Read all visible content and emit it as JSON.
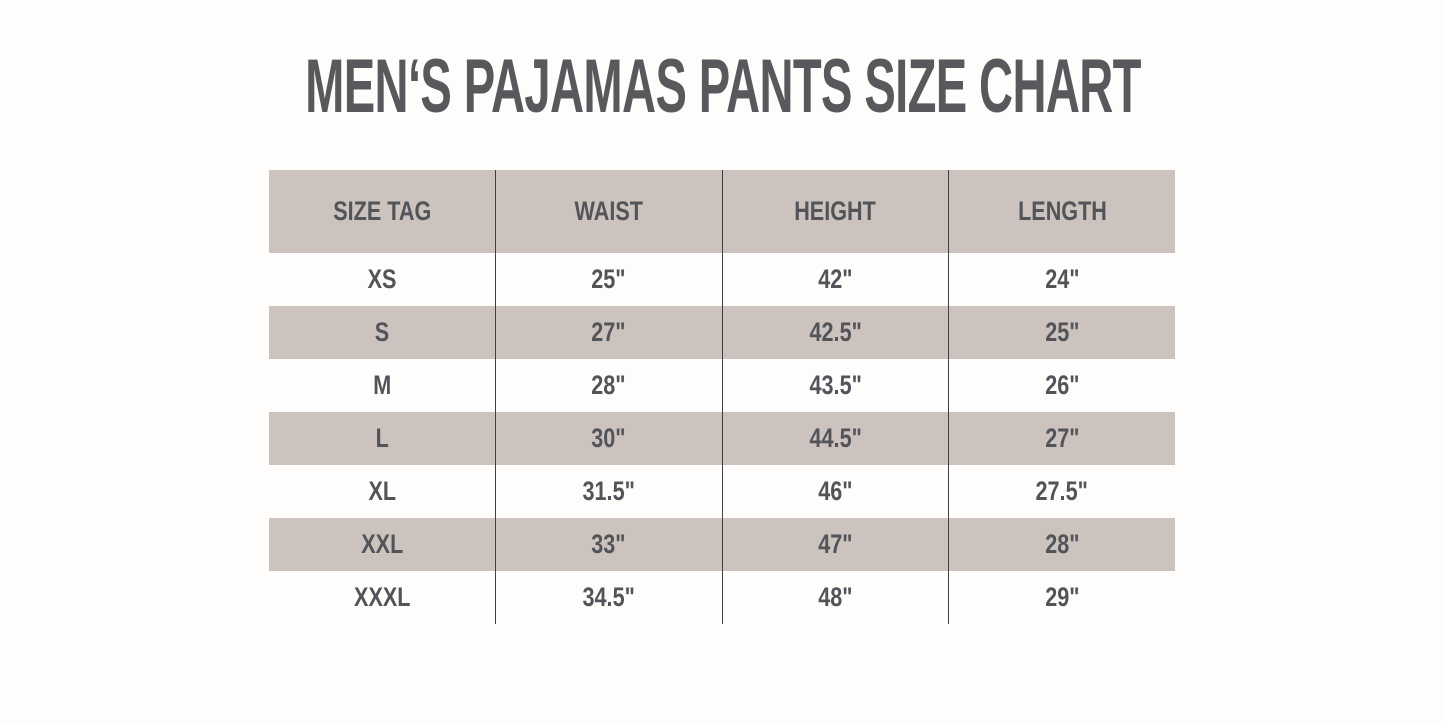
{
  "title": "MEN‘S PAJAMAS PANTS SIZE CHART",
  "table": {
    "columns": [
      "SIZE TAG",
      "WAIST",
      "HEIGHT",
      "LENGTH"
    ],
    "rows": [
      {
        "cells": [
          "XS",
          "25\"",
          "42\"",
          "24\""
        ]
      },
      {
        "cells": [
          "S",
          "27\"",
          "42.5\"",
          "25\""
        ]
      },
      {
        "cells": [
          "M",
          "28\"",
          "43.5\"",
          "26\""
        ]
      },
      {
        "cells": [
          "L",
          "30\"",
          "44.5\"",
          "27\""
        ]
      },
      {
        "cells": [
          "XL",
          "31.5\"",
          "46\"",
          "27.5\""
        ]
      },
      {
        "cells": [
          "XXL",
          "33\"",
          "47\"",
          "28\""
        ]
      },
      {
        "cells": [
          "XXXL",
          "34.5\"",
          "48\"",
          "29\""
        ]
      }
    ]
  },
  "colors": {
    "page_background": "#fffdfc",
    "header_band": "#ccc3be",
    "stripe_band": "#ccc3be",
    "title_text": "#58595c",
    "cell_text": "#525459",
    "divider_line": "#3f4043"
  },
  "chart_data": {
    "type": "table",
    "title": "MEN‘S PAJAMAS PANTS SIZE CHART",
    "columns": [
      "SIZE TAG",
      "WAIST",
      "HEIGHT",
      "LENGTH"
    ],
    "rows": [
      [
        "XS",
        "25\"",
        "42\"",
        "24\""
      ],
      [
        "S",
        "27\"",
        "42.5\"",
        "25\""
      ],
      [
        "M",
        "28\"",
        "43.5\"",
        "26\""
      ],
      [
        "L",
        "30\"",
        "44.5\"",
        "27\""
      ],
      [
        "XL",
        "31.5\"",
        "46\"",
        "27.5\""
      ],
      [
        "XXL",
        "33\"",
        "47\"",
        "28\""
      ],
      [
        "XXXL",
        "34.5\"",
        "48\"",
        "29\""
      ]
    ],
    "layout_hints": {
      "header_filled": true,
      "zebra_striping": "alternating taupe rows starting with header",
      "column_dividers": "thin dark vertical lines between all 4 columns, full table height",
      "outer_border": "none"
    }
  }
}
